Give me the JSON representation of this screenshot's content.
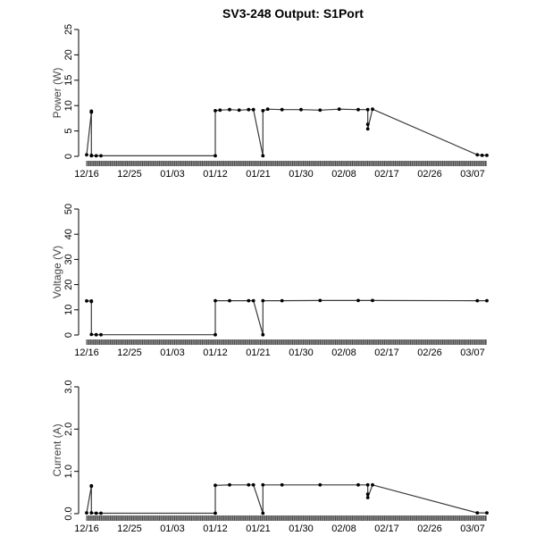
{
  "figure": {
    "title": "SV3-248 Output: S1Port"
  },
  "chart_data": [
    {
      "type": "line",
      "ylabel": "Power (W)",
      "ylim": [
        0,
        25
      ],
      "yticks": [
        "0",
        "5",
        "10",
        "15",
        "20",
        "25"
      ],
      "xlim": [
        "2021-12-16",
        "2022-03-10"
      ],
      "xtick_dates": [
        "2021-12-16",
        "2021-12-25",
        "2022-01-03",
        "2022-01-12",
        "2022-01-21",
        "2022-01-30",
        "2022-02-08",
        "2022-02-17",
        "2022-02-26",
        "2022-03-07"
      ],
      "xticks": [
        "12/16",
        "12/25",
        "01/03",
        "01/12",
        "01/21",
        "01/30",
        "02/08",
        "02/17",
        "02/26",
        "03/07"
      ],
      "series": [
        {
          "x": [
            "2021-12-16",
            "2021-12-17",
            "2021-12-17",
            "2021-12-17",
            "2021-12-17",
            "2021-12-18",
            "2021-12-19",
            "2022-01-12",
            "2022-01-12",
            "2022-01-13",
            "2022-01-15",
            "2022-01-17",
            "2022-01-19",
            "2022-01-20",
            "2022-01-22",
            "2022-01-22",
            "2022-01-23",
            "2022-01-26",
            "2022-01-30",
            "2022-02-03",
            "2022-02-07",
            "2022-02-11",
            "2022-02-13",
            "2022-02-13",
            "2022-02-13",
            "2022-02-14",
            "2022-03-08",
            "2022-03-09",
            "2022-03-10"
          ],
          "y": [
            0.3,
            8.7,
            8.9,
            0.2,
            0.1,
            0.1,
            0.1,
            0.1,
            9.0,
            9.1,
            9.2,
            9.1,
            9.2,
            9.2,
            0.1,
            9.0,
            9.3,
            9.2,
            9.2,
            9.1,
            9.3,
            9.2,
            9.2,
            6.3,
            5.4,
            9.3,
            0.3,
            0.2,
            0.2
          ]
        }
      ]
    },
    {
      "type": "line",
      "ylabel": "Voltage (V)",
      "ylim": [
        0,
        50
      ],
      "yticks": [
        "0",
        "10",
        "20",
        "30",
        "40",
        "50"
      ],
      "xlim": [
        "2021-12-16",
        "2022-03-10"
      ],
      "xtick_dates": [
        "2021-12-16",
        "2021-12-25",
        "2022-01-03",
        "2022-01-12",
        "2022-01-21",
        "2022-01-30",
        "2022-02-08",
        "2022-02-17",
        "2022-02-26",
        "2022-03-07"
      ],
      "xticks": [
        "12/16",
        "12/25",
        "01/03",
        "01/12",
        "01/21",
        "01/30",
        "02/08",
        "02/17",
        "02/26",
        "03/07"
      ],
      "series": [
        {
          "x": [
            "2021-12-16",
            "2021-12-17",
            "2021-12-17",
            "2021-12-17",
            "2021-12-18",
            "2021-12-19",
            "2022-01-12",
            "2022-01-12",
            "2022-01-15",
            "2022-01-19",
            "2022-01-20",
            "2022-01-22",
            "2022-01-22",
            "2022-01-26",
            "2022-02-03",
            "2022-02-11",
            "2022-02-14",
            "2022-03-08",
            "2022-03-10"
          ],
          "y": [
            13.5,
            13.5,
            13.3,
            0.2,
            0.1,
            0.1,
            0.1,
            13.6,
            13.6,
            13.6,
            13.6,
            0.1,
            13.6,
            13.6,
            13.7,
            13.7,
            13.7,
            13.6,
            13.6
          ]
        }
      ]
    },
    {
      "type": "line",
      "ylabel": "Current (A)",
      "ylim": [
        0,
        3.0
      ],
      "yticks": [
        "0.0",
        "1.0",
        "2.0",
        "3.0"
      ],
      "xlim": [
        "2021-12-16",
        "2022-03-10"
      ],
      "xtick_dates": [
        "2021-12-16",
        "2021-12-25",
        "2022-01-03",
        "2022-01-12",
        "2022-01-21",
        "2022-01-30",
        "2022-02-08",
        "2022-02-17",
        "2022-02-26",
        "2022-03-07"
      ],
      "xticks": [
        "12/16",
        "12/25",
        "01/03",
        "01/12",
        "01/21",
        "01/30",
        "02/08",
        "02/17",
        "02/26",
        "03/07"
      ],
      "series": [
        {
          "x": [
            "2021-12-16",
            "2021-12-17",
            "2021-12-17",
            "2021-12-17",
            "2021-12-18",
            "2021-12-19",
            "2022-01-12",
            "2022-01-12",
            "2022-01-15",
            "2022-01-19",
            "2022-01-20",
            "2022-01-22",
            "2022-01-22",
            "2022-01-26",
            "2022-02-03",
            "2022-02-11",
            "2022-02-13",
            "2022-02-13",
            "2022-02-13",
            "2022-02-14",
            "2022-03-08",
            "2022-03-10"
          ],
          "y": [
            0.02,
            0.65,
            0.66,
            0.02,
            0.01,
            0.01,
            0.01,
            0.67,
            0.68,
            0.68,
            0.68,
            0.01,
            0.68,
            0.68,
            0.68,
            0.68,
            0.68,
            0.46,
            0.38,
            0.68,
            0.02,
            0.02
          ]
        }
      ]
    }
  ],
  "colors": {
    "line": "#3a3a3a",
    "point": "#000000",
    "axis_label": "#444444",
    "rug": "#555555"
  }
}
